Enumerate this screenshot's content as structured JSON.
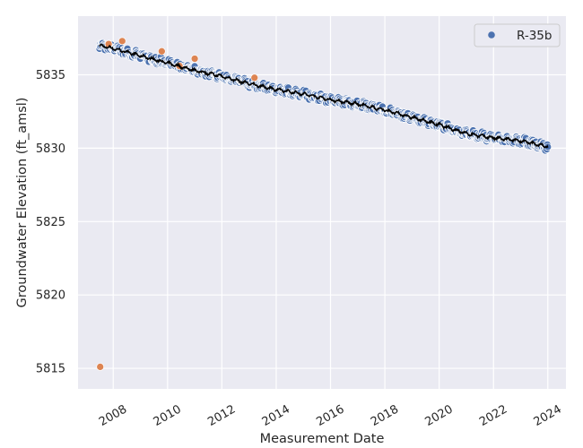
{
  "chart_data": {
    "type": "scatter",
    "title": "",
    "xlabel": "Measurement Date",
    "ylabel": "Groundwater Elevation (ft_amsl)",
    "xlim": [
      "2006-09-15",
      "2024-09-01"
    ],
    "ylim": [
      5813.6,
      5839.0
    ],
    "x_ticks": [
      "2008-01-01",
      "2010-01-01",
      "2012-01-01",
      "2014-01-01",
      "2016-01-01",
      "2018-01-01",
      "2020-01-01",
      "2022-01-01",
      "2024-01-01"
    ],
    "x_tick_labels": [
      "2008",
      "2010",
      "2012",
      "2014",
      "2016",
      "2018",
      "2020",
      "2022",
      "2024"
    ],
    "y_ticks": [
      5815,
      5820,
      5825,
      5830,
      5835
    ],
    "y_tick_labels": [
      "5815",
      "5820",
      "5825",
      "5830",
      "5835"
    ],
    "grid": true,
    "legend": {
      "position": "top-right",
      "entries": [
        "R-35b"
      ]
    },
    "colors": {
      "background": "#eaeaf2",
      "grid": "#ffffff",
      "series_main": "#4c72b0",
      "series_outlier": "#dd8452",
      "trend": "#000000"
    },
    "series": [
      {
        "name": "R-35b",
        "style": "dense-daily",
        "anchors": [
          {
            "x": "2007-07-01",
            "y": 5837.0
          },
          {
            "x": "2008-01-01",
            "y": 5836.8
          },
          {
            "x": "2009-01-01",
            "y": 5836.3
          },
          {
            "x": "2010-01-01",
            "y": 5835.8
          },
          {
            "x": "2011-01-01",
            "y": 5835.3
          },
          {
            "x": "2012-01-01",
            "y": 5834.9
          },
          {
            "x": "2013-01-01",
            "y": 5834.4
          },
          {
            "x": "2014-01-01",
            "y": 5834.0
          },
          {
            "x": "2015-01-01",
            "y": 5833.7
          },
          {
            "x": "2016-01-01",
            "y": 5833.3
          },
          {
            "x": "2017-01-01",
            "y": 5833.0
          },
          {
            "x": "2018-01-01",
            "y": 5832.6
          },
          {
            "x": "2019-01-01",
            "y": 5832.1
          },
          {
            "x": "2020-01-01",
            "y": 5831.6
          },
          {
            "x": "2021-01-01",
            "y": 5831.0
          },
          {
            "x": "2022-01-01",
            "y": 5830.7
          },
          {
            "x": "2023-01-01",
            "y": 5830.5
          },
          {
            "x": "2024-01-01",
            "y": 5830.1
          }
        ]
      },
      {
        "name": "",
        "style": "outliers",
        "points": [
          {
            "x": "2007-07-10",
            "y": 5815.1
          },
          {
            "x": "2008-05-01",
            "y": 5837.3
          },
          {
            "x": "2009-10-15",
            "y": 5836.6
          },
          {
            "x": "2010-06-10",
            "y": 5835.6
          },
          {
            "x": "2011-01-01",
            "y": 5836.1
          },
          {
            "x": "2013-03-15",
            "y": 5834.8
          },
          {
            "x": "2007-11-01",
            "y": 5837.1
          }
        ]
      }
    ]
  }
}
